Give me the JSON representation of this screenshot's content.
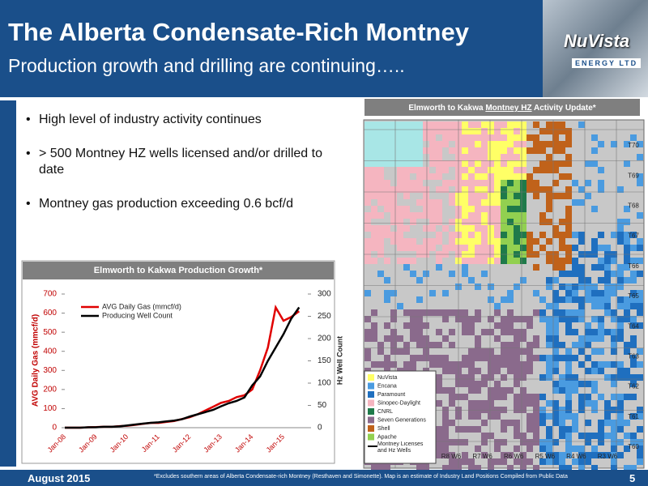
{
  "header": {
    "title": "The Alberta Condensate-Rich Montney",
    "subtitle": "Production growth and drilling are continuing….."
  },
  "logo": {
    "name": "NuVista",
    "tagline": "ENERGY LTD"
  },
  "bullets": [
    "High level of industry activity continues",
    "> 500 Montney HZ wells licensed and/or drilled to date",
    "Montney gas production exceeding 0.6 bcf/d"
  ],
  "chart_data": {
    "type": "line",
    "title": "Elmworth to Kakwa Production Growth*",
    "categories": [
      "Jan-08",
      null,
      null,
      null,
      "Jan-09",
      null,
      null,
      null,
      "Jan-10",
      null,
      null,
      null,
      "Jan-11",
      null,
      null,
      null,
      "Jan-12",
      null,
      null,
      null,
      "Jan-13",
      null,
      null,
      null,
      "Jan-14",
      null,
      null,
      null,
      "Jan-15",
      null,
      null
    ],
    "series": [
      {
        "name": "AVG Daily Gas (mmcf/d)",
        "color": "#e00000",
        "values": [
          0,
          0,
          0,
          2,
          3,
          5,
          5,
          8,
          10,
          15,
          20,
          25,
          25,
          30,
          35,
          45,
          55,
          70,
          90,
          110,
          130,
          140,
          160,
          170,
          200,
          300,
          420,
          630,
          560,
          580,
          610
        ]
      },
      {
        "name": "Producing Well Count",
        "color": "#000000",
        "axis": "y2",
        "values": [
          0,
          0,
          0,
          1,
          1,
          2,
          2,
          3,
          5,
          7,
          9,
          11,
          12,
          14,
          16,
          19,
          25,
          30,
          35,
          40,
          48,
          55,
          60,
          68,
          95,
          115,
          150,
          180,
          210,
          245,
          270
        ]
      }
    ],
    "ylabel": "AVG Daily Gas (mmcf/d)",
    "y2label": "Hz Well Count",
    "ylim": [
      0,
      700
    ],
    "yticks": [
      0,
      100,
      200,
      300,
      400,
      500,
      600,
      700
    ],
    "y2lim": [
      0,
      300
    ],
    "y2ticks": [
      0,
      50,
      100,
      150,
      200,
      250,
      300
    ],
    "legend": "upper left"
  },
  "map": {
    "title_parts": [
      "Elmworth to Kakwa ",
      "Montney HZ",
      " Activity Update*"
    ],
    "townships": [
      "T70",
      "T69",
      "T68",
      "T67",
      "T66",
      "T65",
      "T64",
      "T63",
      "T62",
      "T61",
      "T60"
    ],
    "ranges": [
      "R8 W6",
      "R7 W6",
      "R6 W6",
      "R5 W6",
      "R4 W6",
      "R3 W6"
    ],
    "legend": [
      {
        "name": "NuVista",
        "color": "#ffff66"
      },
      {
        "name": "Encana",
        "color": "#4a9be0"
      },
      {
        "name": "Paramount",
        "color": "#1f6fbf"
      },
      {
        "name": "Sinopec-Daylight",
        "color": "#f5b5c0"
      },
      {
        "name": "CNRL",
        "color": "#1f7a4a"
      },
      {
        "name": "Seven Generations",
        "color": "#8a6a8c"
      },
      {
        "name": "Shell",
        "color": "#c0621a"
      },
      {
        "name": "Apache",
        "color": "#92d050"
      }
    ],
    "line_legend": "Montney Licenses and Hz Wells"
  },
  "footer": {
    "date": "August 2015",
    "note": "*Excludes southern areas of Alberta Condensate-rich Montney (Resthaven and Simonette). Map is an estimate of Industry Land Positions Compiled from Public Data",
    "page": "5"
  }
}
